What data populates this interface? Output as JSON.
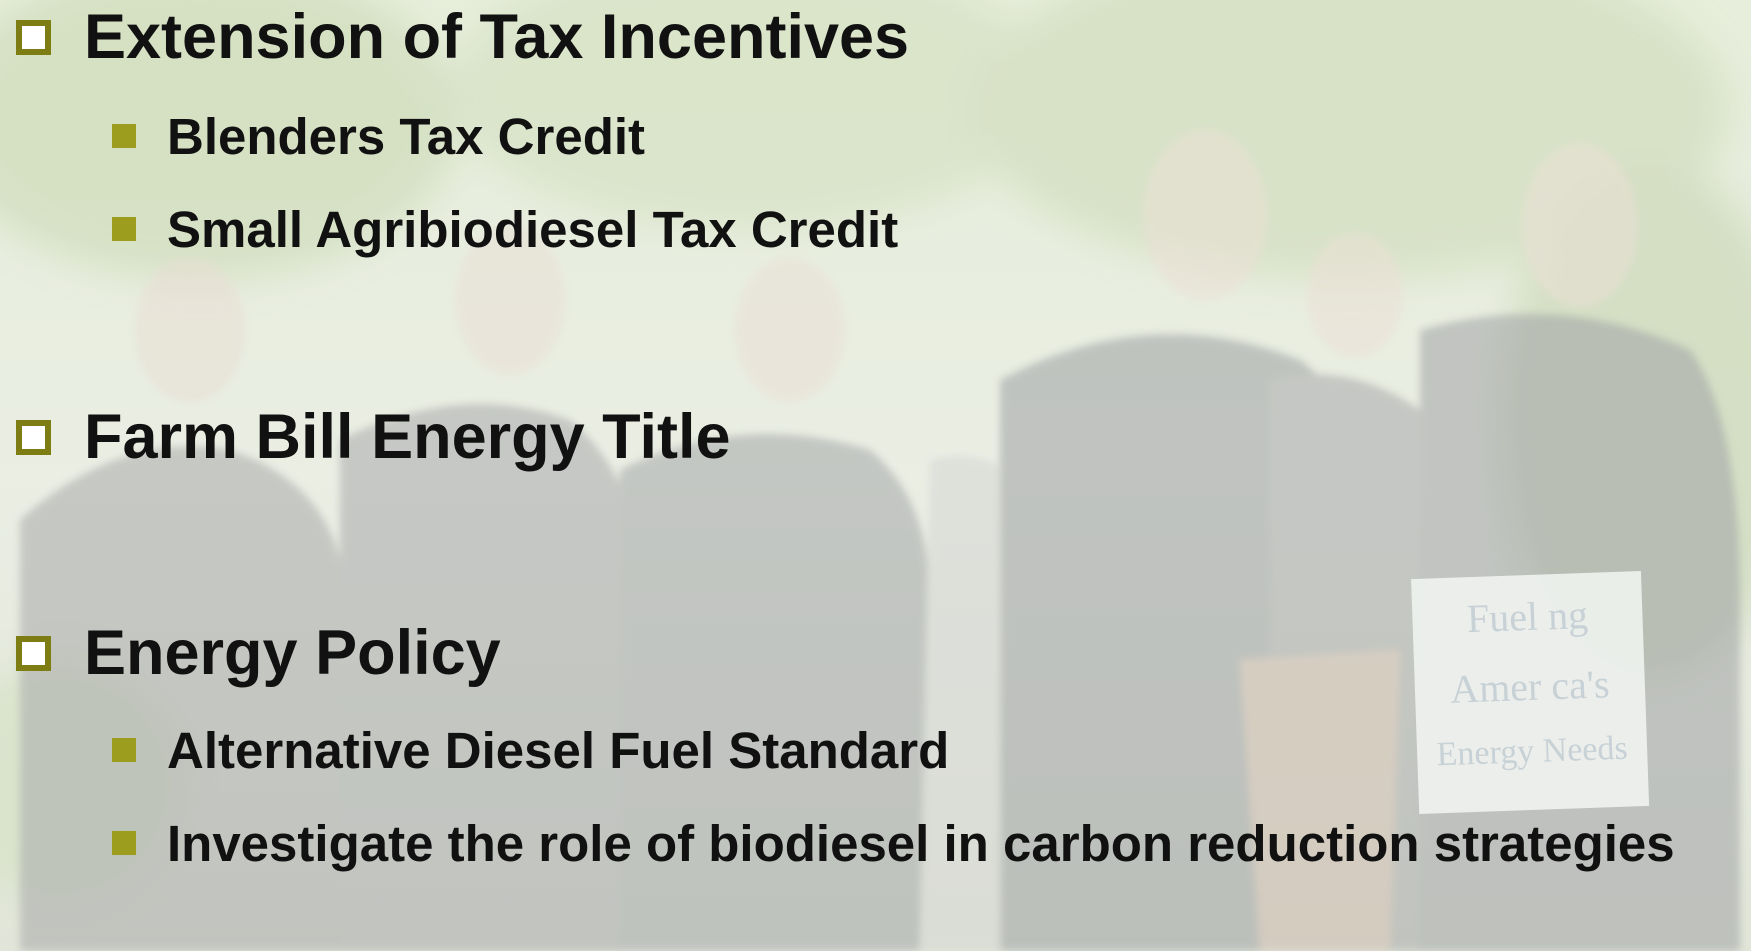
{
  "slide": {
    "items": [
      {
        "text": "Extension of Tax Incentives",
        "subitems": [
          "Blenders Tax Credit",
          "Small Agribiodiesel Tax Credit"
        ]
      },
      {
        "text": "Farm Bill Energy Title",
        "subitems": []
      },
      {
        "text": "Energy Policy",
        "subitems": [
          "Alternative Diesel Fuel Standard",
          "Investigate the role of biodiesel in carbon reduction strategies"
        ]
      }
    ],
    "sign": [
      "Fuel ng",
      "Amer ca's",
      "Energy Needs"
    ]
  }
}
